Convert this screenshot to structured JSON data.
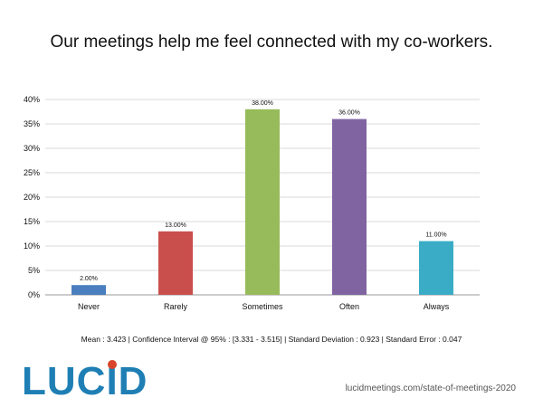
{
  "title": "Our meetings help me feel connected with my co-workers.",
  "stats": "Mean : 3.423  |  Confidence Interval @ 95% : [3.331 - 3.515]  |  Standard Deviation : 0.923  |  Standard Error : 0.047",
  "logo": {
    "text_a": "LUC",
    "text_b": "I",
    "text_c": "D",
    "dot_color": "#d9452b",
    "color": "#1f7fb4"
  },
  "source": "lucidmeetings.com/state-of-meetings-2020",
  "chart_data": {
    "type": "bar",
    "categories": [
      "Never",
      "Rarely",
      "Sometimes",
      "Often",
      "Always"
    ],
    "values": [
      2,
      13,
      38,
      36,
      11
    ],
    "data_labels": [
      "2.00%",
      "13.00%",
      "38.00%",
      "36.00%",
      "11.00%"
    ],
    "colors": [
      "#4a7ebf",
      "#c94f4c",
      "#97bb5a",
      "#8064a2",
      "#3aacc6"
    ],
    "yticks": [
      "0%",
      "5%",
      "10%",
      "15%",
      "20%",
      "25%",
      "30%",
      "35%",
      "40%"
    ],
    "ylim": [
      0,
      40
    ],
    "grid": true,
    "title": "Our meetings help me feel connected with my co-workers.",
    "xlabel": "",
    "ylabel": ""
  }
}
